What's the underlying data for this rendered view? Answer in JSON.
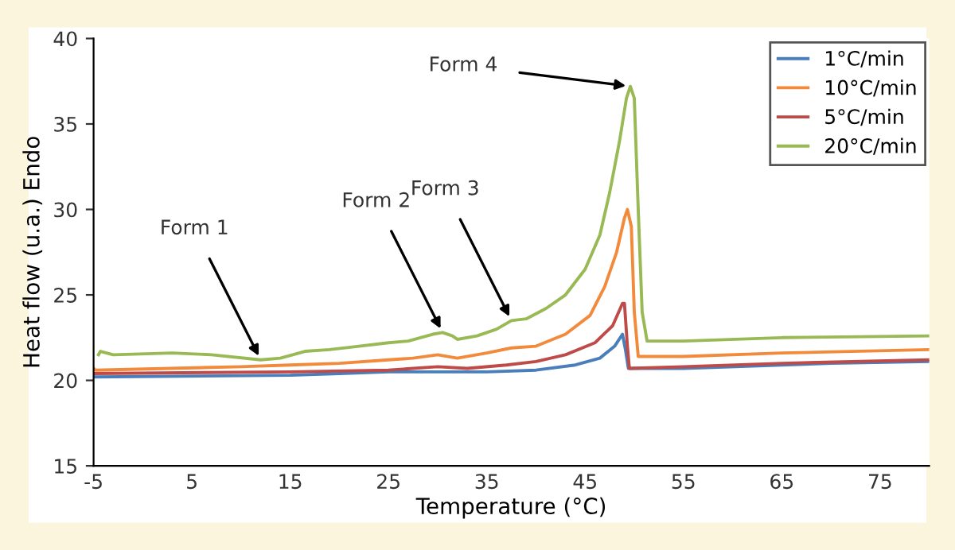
{
  "chart_data": {
    "type": "line",
    "xlabel": "Temperature (°C)",
    "ylabel": "Heat flow (u.a.) Endo",
    "xlim": [
      -5,
      80
    ],
    "xticks": [
      -5,
      5,
      15,
      25,
      35,
      45,
      55,
      65,
      75
    ],
    "ylim": [
      15,
      40
    ],
    "yticks": [
      15,
      20,
      25,
      30,
      35,
      40
    ],
    "grid": false,
    "legend": "top right",
    "marker": "none",
    "line_style": "solid",
    "series": [
      {
        "name": "1°C/min",
        "color": "#4a7ebb",
        "x": [
          -5,
          15,
          20,
          25,
          35,
          40,
          44,
          46.5,
          48,
          48.8,
          49.1,
          49.4,
          55,
          70,
          80
        ],
        "values": [
          20.2,
          20.3,
          20.4,
          20.5,
          20.5,
          20.6,
          20.9,
          21.3,
          22.0,
          22.7,
          21.8,
          20.7,
          20.7,
          21.0,
          21.1
        ]
      },
      {
        "name": "10°C/min",
        "color": "#f28a3c",
        "x": [
          -5,
          -4.8,
          10,
          15,
          20,
          25,
          27.5,
          30,
          32,
          35,
          37.5,
          40,
          43,
          45.5,
          47,
          48.2,
          49,
          49.3,
          49.7,
          50.0,
          50.4,
          55,
          65,
          80
        ],
        "values": [
          20.7,
          20.6,
          20.8,
          20.9,
          21.0,
          21.2,
          21.3,
          21.5,
          21.3,
          21.6,
          21.9,
          22.0,
          22.7,
          23.8,
          25.5,
          27.5,
          29.5,
          30.0,
          29.0,
          24.0,
          21.4,
          21.4,
          21.6,
          21.8
        ]
      },
      {
        "name": "5°C/min",
        "color": "#be4b48",
        "x": [
          -5,
          15,
          25,
          30,
          33,
          37,
          40,
          43,
          46,
          47.8,
          48.8,
          49.0,
          49.3,
          49.5,
          55,
          65,
          80
        ],
        "values": [
          20.4,
          20.5,
          20.6,
          20.8,
          20.7,
          20.9,
          21.1,
          21.5,
          22.2,
          23.2,
          24.5,
          24.5,
          22.0,
          20.7,
          20.8,
          21.0,
          21.2
        ]
      },
      {
        "name": "20°C/min",
        "color": "#98b954",
        "x": [
          -4.5,
          -4.3,
          -3,
          3,
          7,
          12,
          14,
          16.5,
          19,
          22,
          25,
          27,
          29.5,
          30.5,
          31.5,
          32,
          34,
          36,
          37.5,
          39,
          41,
          43,
          45,
          46.5,
          47.5,
          48.5,
          49.2,
          49.6,
          50.0,
          50.4,
          50.8,
          51.3,
          55,
          65,
          80
        ],
        "values": [
          21.5,
          21.7,
          21.5,
          21.6,
          21.5,
          21.2,
          21.3,
          21.7,
          21.8,
          22.0,
          22.2,
          22.3,
          22.7,
          22.8,
          22.6,
          22.4,
          22.6,
          23.0,
          23.5,
          23.6,
          24.2,
          25.0,
          26.5,
          28.5,
          31.0,
          34.0,
          36.5,
          37.2,
          36.5,
          30.0,
          24.0,
          22.3,
          22.3,
          22.5,
          22.6
        ]
      }
    ],
    "annotations": [
      {
        "text": "Form 1",
        "x": 12,
        "y": 21.2
      },
      {
        "text": "Form 2",
        "x": 30.5,
        "y": 22.8
      },
      {
        "text": "Form 3",
        "x": 37.5,
        "y": 23.5
      },
      {
        "text": "Form 4",
        "x": 49.6,
        "y": 37.2
      }
    ]
  }
}
